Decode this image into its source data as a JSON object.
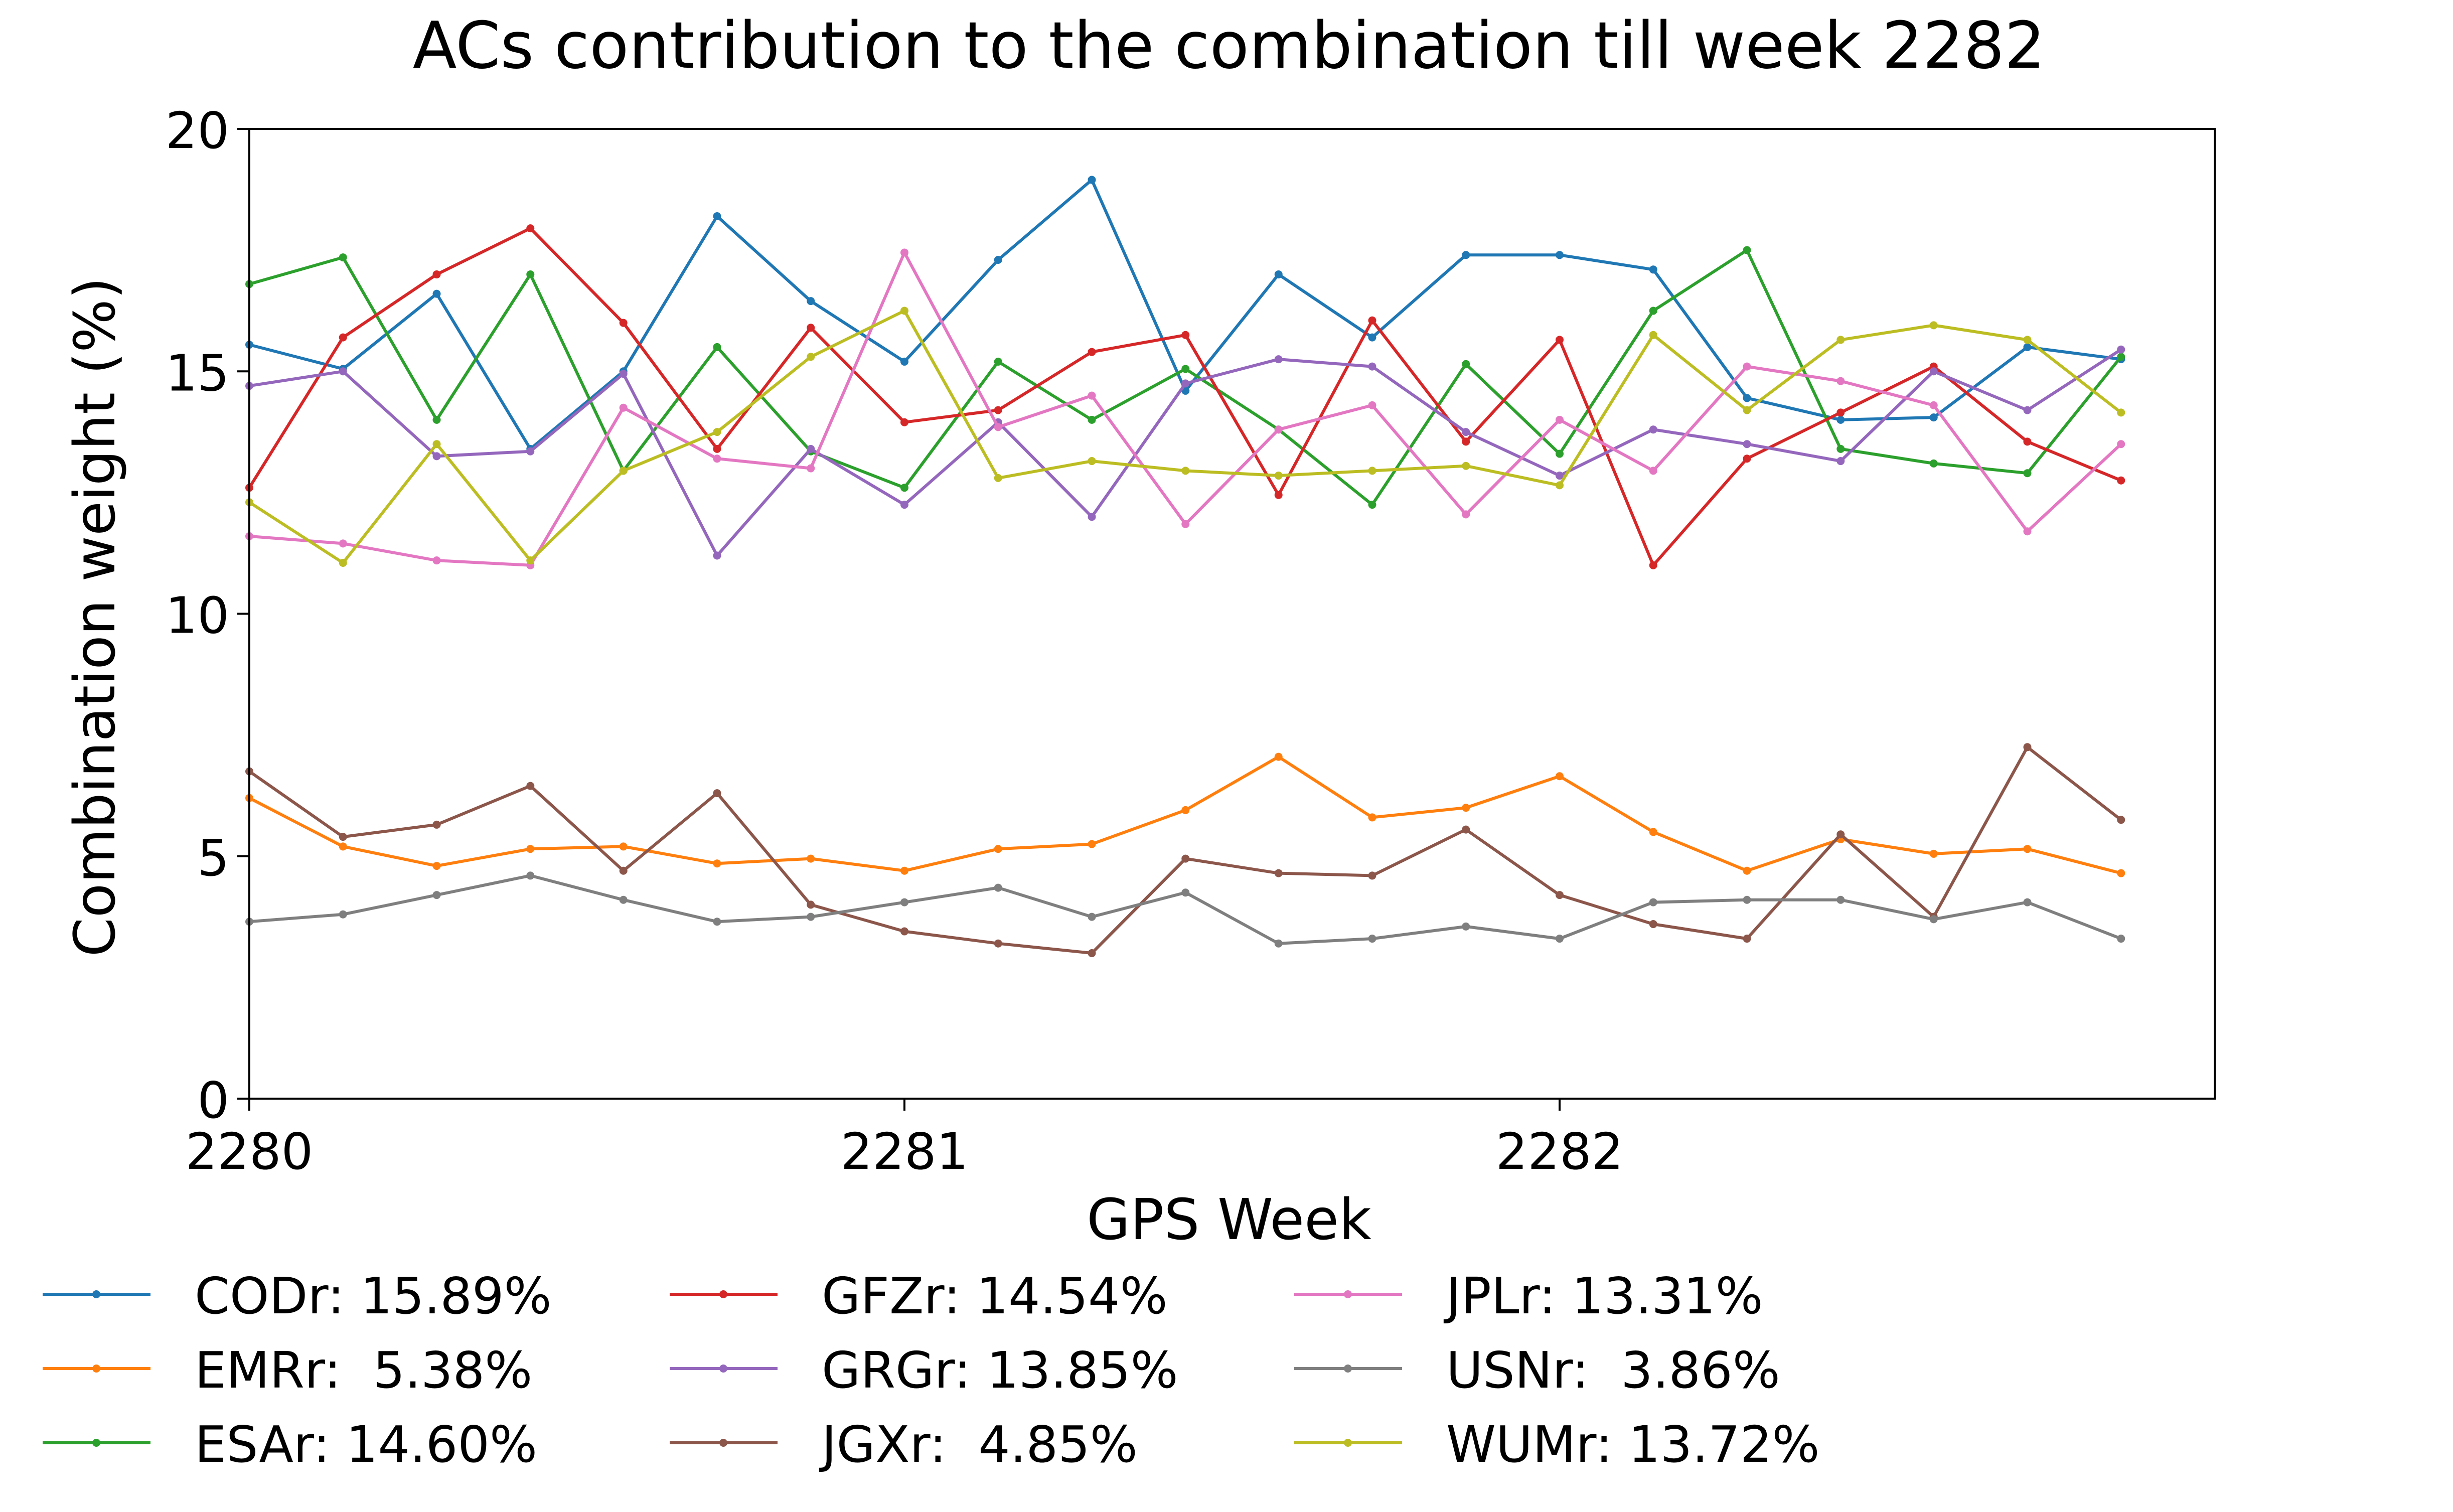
{
  "chart_data": {
    "type": "line",
    "title": "ACs contribution to the combination till week 2282",
    "xlabel": "GPS Week",
    "ylabel": "Combination weight (%)",
    "xlim": [
      2280,
      2283.0
    ],
    "ylim": [
      0,
      20
    ],
    "xticks": [
      "2280",
      "2281",
      "2282"
    ],
    "yticks": [
      "0",
      "5",
      "10",
      "15",
      "20"
    ],
    "grid": false,
    "legend_position": "bottom",
    "x": [
      2280.0,
      2280.143,
      2280.286,
      2280.429,
      2280.571,
      2280.714,
      2280.857,
      2281.0,
      2281.143,
      2281.286,
      2281.429,
      2281.571,
      2281.714,
      2281.857,
      2282.0,
      2282.143,
      2282.286,
      2282.429,
      2282.571,
      2282.714,
      2282.857
    ],
    "series": [
      {
        "name": "CODr",
        "legend_label": "CODr: 15.89%",
        "color": "#1f77b4",
        "values": [
          15.55,
          15.05,
          16.6,
          13.4,
          15.0,
          18.2,
          16.45,
          15.2,
          17.3,
          18.95,
          14.6,
          17.0,
          15.7,
          17.4,
          17.4,
          17.1,
          14.45,
          14.0,
          14.05,
          15.5,
          15.25
        ]
      },
      {
        "name": "EMRr",
        "legend_label": "EMRr:  5.38%",
        "color": "#ff7f0e",
        "values": [
          6.2,
          5.2,
          4.8,
          5.15,
          5.2,
          4.85,
          4.95,
          4.7,
          5.15,
          5.25,
          5.95,
          7.05,
          5.8,
          6.0,
          6.65,
          5.5,
          4.7,
          5.35,
          5.05,
          5.15,
          4.65
        ]
      },
      {
        "name": "ESAr",
        "legend_label": "ESAr: 14.60%",
        "color": "#2ca02c",
        "values": [
          16.8,
          17.35,
          14.0,
          17.0,
          12.95,
          15.5,
          13.35,
          12.6,
          15.2,
          14.0,
          15.05,
          13.8,
          12.25,
          15.15,
          13.3,
          16.25,
          17.5,
          13.4,
          13.1,
          12.9,
          15.3
        ]
      },
      {
        "name": "GFZr",
        "legend_label": "GFZr: 14.54%",
        "color": "#d62728",
        "values": [
          12.6,
          15.7,
          17.0,
          17.95,
          16.0,
          13.4,
          15.9,
          13.95,
          14.2,
          15.4,
          15.75,
          12.45,
          16.05,
          13.55,
          15.65,
          11.0,
          13.2,
          14.15,
          15.1,
          13.55,
          12.75
        ]
      },
      {
        "name": "GRGr",
        "legend_label": "GRGr: 13.85%",
        "color": "#9467bd",
        "values": [
          14.7,
          15.0,
          13.25,
          13.35,
          14.95,
          11.2,
          13.4,
          12.25,
          13.95,
          12.0,
          14.75,
          15.25,
          15.1,
          13.75,
          12.85,
          13.8,
          13.5,
          13.15,
          15.0,
          14.2,
          15.45
        ]
      },
      {
        "name": "JGXr",
        "legend_label": "JGXr:  4.85%",
        "color": "#8c564b",
        "values": [
          6.75,
          5.4,
          5.65,
          6.45,
          4.7,
          6.3,
          4.0,
          3.45,
          3.2,
          3.0,
          4.95,
          4.65,
          4.6,
          5.55,
          4.2,
          3.6,
          3.3,
          5.45,
          3.75,
          7.25,
          5.75
        ]
      },
      {
        "name": "JPLr",
        "legend_label": "JPLr: 13.31%",
        "color": "#e377c2",
        "values": [
          11.6,
          11.45,
          11.1,
          11.0,
          14.25,
          13.2,
          13.0,
          17.45,
          13.85,
          14.5,
          11.85,
          13.8,
          14.3,
          12.05,
          14.0,
          12.95,
          15.1,
          14.8,
          14.3,
          11.7,
          13.5
        ]
      },
      {
        "name": "USNr",
        "legend_label": "USNr:  3.86%",
        "color": "#7f7f7f",
        "values": [
          3.65,
          3.8,
          4.2,
          4.6,
          4.1,
          3.65,
          3.75,
          4.05,
          4.35,
          3.75,
          4.25,
          3.2,
          3.3,
          3.55,
          3.3,
          4.05,
          4.1,
          4.1,
          3.7,
          4.05,
          3.3
        ]
      },
      {
        "name": "WUMr",
        "legend_label": "WUMr: 13.72%",
        "color": "#bcbd22",
        "values": [
          12.3,
          11.05,
          13.5,
          11.1,
          12.95,
          13.75,
          15.3,
          16.25,
          12.8,
          13.15,
          12.95,
          12.85,
          12.95,
          13.05,
          12.65,
          15.75,
          14.2,
          15.65,
          15.95,
          15.65,
          14.15
        ]
      }
    ]
  }
}
